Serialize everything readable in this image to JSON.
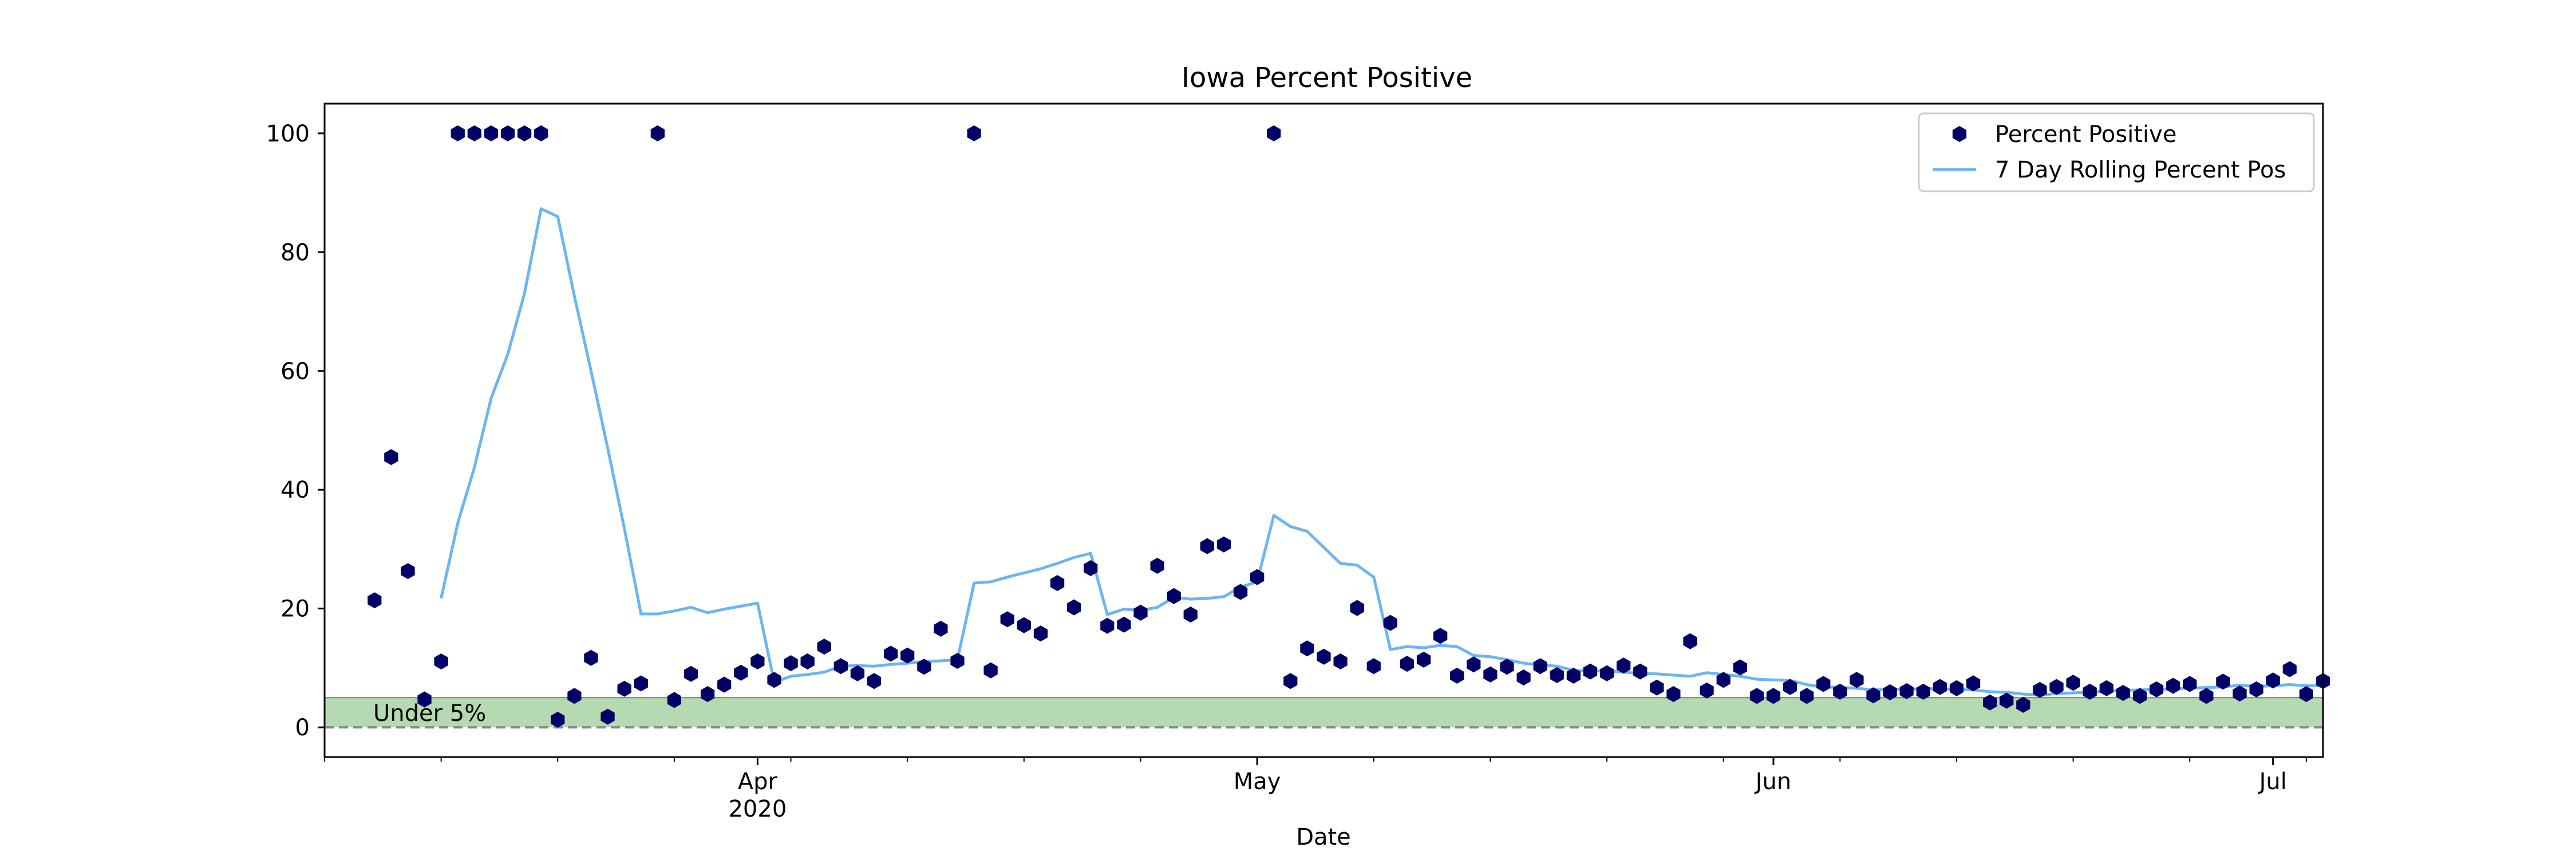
{
  "chart_data": {
    "type": "scatter",
    "title": "Iowa Percent Positive",
    "xlabel": "Date",
    "ylabel": "",
    "x_axis": {
      "type": "date",
      "range": [
        "2020-03-06",
        "2020-07-03"
      ],
      "major_ticks": [
        {
          "date": "2020-04-01",
          "label": "Apr",
          "sublabel": "2020"
        },
        {
          "date": "2020-05-01",
          "label": "May",
          "sublabel": ""
        },
        {
          "date": "2020-06-01",
          "label": "Jun",
          "sublabel": ""
        },
        {
          "date": "2020-07-01",
          "label": "Jul",
          "sublabel": ""
        }
      ],
      "minor_ticks": "weekly"
    },
    "y_axis": {
      "range": [
        -5,
        105
      ],
      "ticks": [
        0,
        20,
        40,
        60,
        80,
        100
      ]
    },
    "grid": false,
    "legend": {
      "position": "top-right",
      "entries": [
        {
          "label": "Percent Positive",
          "color": "#000066",
          "marker": "hexagon"
        },
        {
          "label": "7 Day Rolling Percent Pos",
          "color": "#6cb4f2",
          "marker": "line"
        }
      ]
    },
    "band": {
      "y0": 0,
      "y1": 5,
      "label": "Under 5%",
      "color": "#b5d9b0",
      "edge_color": "#5a9a5a"
    },
    "reference_line": {
      "y": 0,
      "style": "dashed",
      "color": "#888888"
    },
    "series": [
      {
        "name": "Percent Positive",
        "style": "markers",
        "color": "#000066",
        "points": [
          [
            "2020-03-09",
            21.4
          ],
          [
            "2020-03-10",
            45.5
          ],
          [
            "2020-03-11",
            26.3
          ],
          [
            "2020-03-12",
            4.7
          ],
          [
            "2020-03-13",
            11.1
          ],
          [
            "2020-03-14",
            100
          ],
          [
            "2020-03-15",
            100
          ],
          [
            "2020-03-16",
            100
          ],
          [
            "2020-03-17",
            100
          ],
          [
            "2020-03-18",
            100
          ],
          [
            "2020-03-19",
            100
          ],
          [
            "2020-03-20",
            1.3
          ],
          [
            "2020-03-21",
            5.3
          ],
          [
            "2020-03-22",
            11.7
          ],
          [
            "2020-03-23",
            1.8
          ],
          [
            "2020-03-24",
            6.5
          ],
          [
            "2020-03-25",
            7.4
          ],
          [
            "2020-03-26",
            100
          ],
          [
            "2020-03-27",
            4.6
          ],
          [
            "2020-03-28",
            9.0
          ],
          [
            "2020-03-29",
            5.6
          ],
          [
            "2020-03-30",
            7.2
          ],
          [
            "2020-03-31",
            9.2
          ],
          [
            "2020-04-01",
            11.1
          ],
          [
            "2020-04-02",
            8.0
          ],
          [
            "2020-04-03",
            10.8
          ],
          [
            "2020-04-04",
            11.1
          ],
          [
            "2020-04-05",
            13.6
          ],
          [
            "2020-04-06",
            10.3
          ],
          [
            "2020-04-07",
            9.1
          ],
          [
            "2020-04-08",
            7.8
          ],
          [
            "2020-04-09",
            12.4
          ],
          [
            "2020-04-10",
            12.1
          ],
          [
            "2020-04-11",
            10.2
          ],
          [
            "2020-04-12",
            16.6
          ],
          [
            "2020-04-13",
            11.2
          ],
          [
            "2020-04-14",
            100
          ],
          [
            "2020-04-15",
            9.6
          ],
          [
            "2020-04-16",
            18.2
          ],
          [
            "2020-04-17",
            17.2
          ],
          [
            "2020-04-18",
            15.8
          ],
          [
            "2020-04-19",
            24.3
          ],
          [
            "2020-04-20",
            20.2
          ],
          [
            "2020-04-21",
            26.8
          ],
          [
            "2020-04-22",
            17.1
          ],
          [
            "2020-04-23",
            17.3
          ],
          [
            "2020-04-24",
            19.3
          ],
          [
            "2020-04-25",
            27.2
          ],
          [
            "2020-04-26",
            22.1
          ],
          [
            "2020-04-27",
            19.0
          ],
          [
            "2020-04-28",
            30.5
          ],
          [
            "2020-04-29",
            30.8
          ],
          [
            "2020-04-30",
            22.8
          ],
          [
            "2020-05-01",
            25.3
          ],
          [
            "2020-05-02",
            100
          ],
          [
            "2020-05-03",
            7.8
          ],
          [
            "2020-05-04",
            13.3
          ],
          [
            "2020-05-05",
            11.9
          ],
          [
            "2020-05-06",
            11.1
          ],
          [
            "2020-05-07",
            20.1
          ],
          [
            "2020-05-08",
            10.3
          ],
          [
            "2020-05-09",
            17.6
          ],
          [
            "2020-05-10",
            10.7
          ],
          [
            "2020-05-11",
            11.4
          ],
          [
            "2020-05-12",
            15.4
          ],
          [
            "2020-05-13",
            8.7
          ],
          [
            "2020-05-14",
            10.6
          ],
          [
            "2020-05-15",
            8.9
          ],
          [
            "2020-05-16",
            10.2
          ],
          [
            "2020-05-17",
            8.4
          ],
          [
            "2020-05-18",
            10.3
          ],
          [
            "2020-05-19",
            8.8
          ],
          [
            "2020-05-20",
            8.7
          ],
          [
            "2020-05-21",
            9.4
          ],
          [
            "2020-05-22",
            9.1
          ],
          [
            "2020-05-23",
            10.4
          ],
          [
            "2020-05-24",
            9.4
          ],
          [
            "2020-05-25",
            6.7
          ],
          [
            "2020-05-26",
            5.6
          ],
          [
            "2020-05-27",
            14.5
          ],
          [
            "2020-05-28",
            6.2
          ],
          [
            "2020-05-29",
            8.0
          ],
          [
            "2020-05-30",
            10.1
          ],
          [
            "2020-05-31",
            5.3
          ],
          [
            "2020-06-01",
            5.3
          ],
          [
            "2020-06-02",
            6.8
          ],
          [
            "2020-06-03",
            5.3
          ],
          [
            "2020-06-04",
            7.3
          ],
          [
            "2020-06-05",
            6.0
          ],
          [
            "2020-06-06",
            8.0
          ],
          [
            "2020-06-07",
            5.4
          ],
          [
            "2020-06-08",
            5.9
          ],
          [
            "2020-06-09",
            6.1
          ],
          [
            "2020-06-10",
            6.0
          ],
          [
            "2020-06-11",
            6.8
          ],
          [
            "2020-06-12",
            6.6
          ],
          [
            "2020-06-13",
            7.4
          ],
          [
            "2020-06-14",
            4.2
          ],
          [
            "2020-06-15",
            4.5
          ],
          [
            "2020-06-16",
            3.8
          ],
          [
            "2020-06-17",
            6.3
          ],
          [
            "2020-06-18",
            6.8
          ],
          [
            "2020-06-19",
            7.5
          ],
          [
            "2020-06-20",
            6.0
          ],
          [
            "2020-06-21",
            6.6
          ],
          [
            "2020-06-22",
            5.8
          ],
          [
            "2020-06-23",
            5.3
          ],
          [
            "2020-06-24",
            6.4
          ],
          [
            "2020-06-25",
            7.0
          ],
          [
            "2020-06-26",
            7.3
          ],
          [
            "2020-06-27",
            5.3
          ],
          [
            "2020-06-28",
            7.7
          ],
          [
            "2020-06-29",
            5.7
          ],
          [
            "2020-06-30",
            6.4
          ],
          [
            "2020-07-01",
            7.9
          ],
          [
            "2020-07-02",
            9.8
          ],
          [
            "2020-07-03",
            5.6
          ],
          [
            "2020-07-04",
            7.8
          ]
        ]
      },
      {
        "name": "7 Day Rolling Percent Pos",
        "style": "line",
        "color": "#6cb4f2",
        "points": [
          [
            "2020-03-13",
            21.7
          ],
          [
            "2020-03-14",
            34.4
          ],
          [
            "2020-03-15",
            43.8
          ],
          [
            "2020-03-16",
            55.4
          ],
          [
            "2020-03-17",
            62.8
          ],
          [
            "2020-03-18",
            73.0
          ],
          [
            "2020-03-19",
            87.3
          ],
          [
            "2020-03-20",
            86.0
          ],
          [
            "2020-03-21",
            72.6
          ],
          [
            "2020-03-22",
            60.0
          ],
          [
            "2020-03-23",
            47.0
          ],
          [
            "2020-03-24",
            33.5
          ],
          [
            "2020-03-25",
            19.1
          ],
          [
            "2020-03-26",
            19.1
          ],
          [
            "2020-03-27",
            19.6
          ],
          [
            "2020-03-28",
            20.2
          ],
          [
            "2020-03-29",
            19.3
          ],
          [
            "2020-03-30",
            19.9
          ],
          [
            "2020-03-31",
            20.4
          ],
          [
            "2020-04-01",
            20.9
          ],
          [
            "2020-04-02",
            7.6
          ],
          [
            "2020-04-03",
            8.6
          ],
          [
            "2020-04-04",
            8.9
          ],
          [
            "2020-04-05",
            9.3
          ],
          [
            "2020-04-06",
            10.3
          ],
          [
            "2020-04-07",
            10.4
          ],
          [
            "2020-04-08",
            10.3
          ],
          [
            "2020-04-09",
            10.6
          ],
          [
            "2020-04-10",
            10.8
          ],
          [
            "2020-04-11",
            11.1
          ],
          [
            "2020-04-12",
            11.2
          ],
          [
            "2020-04-13",
            11.4
          ],
          [
            "2020-04-14",
            24.3
          ],
          [
            "2020-04-15",
            24.5
          ],
          [
            "2020-04-16",
            25.3
          ],
          [
            "2020-04-17",
            26.0
          ],
          [
            "2020-04-18",
            26.7
          ],
          [
            "2020-04-19",
            27.6
          ],
          [
            "2020-04-20",
            28.6
          ],
          [
            "2020-04-21",
            29.3
          ],
          [
            "2020-04-22",
            19.0
          ],
          [
            "2020-04-23",
            19.9
          ],
          [
            "2020-04-24",
            19.7
          ],
          [
            "2020-04-25",
            20.2
          ],
          [
            "2020-04-26",
            21.9
          ],
          [
            "2020-04-27",
            21.6
          ],
          [
            "2020-04-28",
            21.7
          ],
          [
            "2020-04-29",
            22.0
          ],
          [
            "2020-04-30",
            23.6
          ],
          [
            "2020-05-01",
            24.5
          ],
          [
            "2020-05-02",
            35.7
          ],
          [
            "2020-05-03",
            33.8
          ],
          [
            "2020-05-04",
            33.0
          ],
          [
            "2020-05-05",
            30.3
          ],
          [
            "2020-05-06",
            27.6
          ],
          [
            "2020-05-07",
            27.3
          ],
          [
            "2020-05-08",
            25.3
          ],
          [
            "2020-05-09",
            13.1
          ],
          [
            "2020-05-10",
            13.6
          ],
          [
            "2020-05-11",
            13.4
          ],
          [
            "2020-05-12",
            13.8
          ],
          [
            "2020-05-13",
            13.6
          ],
          [
            "2020-05-14",
            12.1
          ],
          [
            "2020-05-15",
            11.9
          ],
          [
            "2020-05-16",
            11.4
          ],
          [
            "2020-05-17",
            10.8
          ],
          [
            "2020-05-18",
            10.5
          ],
          [
            "2020-05-19",
            10.3
          ],
          [
            "2020-05-20",
            9.6
          ],
          [
            "2020-05-21",
            9.5
          ],
          [
            "2020-05-22",
            9.5
          ],
          [
            "2020-05-23",
            9.3
          ],
          [
            "2020-05-24",
            9.1
          ],
          [
            "2020-05-25",
            9.0
          ],
          [
            "2020-05-26",
            8.8
          ],
          [
            "2020-05-27",
            8.6
          ],
          [
            "2020-05-28",
            9.2
          ],
          [
            "2020-05-29",
            8.9
          ],
          [
            "2020-05-30",
            8.6
          ],
          [
            "2020-05-31",
            8.1
          ],
          [
            "2020-06-01",
            8.0
          ],
          [
            "2020-06-02",
            7.9
          ],
          [
            "2020-06-03",
            7.2
          ],
          [
            "2020-06-04",
            6.8
          ],
          [
            "2020-06-05",
            6.7
          ],
          [
            "2020-06-06",
            6.6
          ],
          [
            "2020-06-07",
            6.3
          ],
          [
            "2020-06-08",
            6.4
          ],
          [
            "2020-06-09",
            6.4
          ],
          [
            "2020-06-10",
            6.5
          ],
          [
            "2020-06-11",
            6.5
          ],
          [
            "2020-06-12",
            6.4
          ],
          [
            "2020-06-13",
            6.3
          ],
          [
            "2020-06-14",
            6.0
          ],
          [
            "2020-06-15",
            5.9
          ],
          [
            "2020-06-16",
            5.6
          ],
          [
            "2020-06-17",
            5.4
          ],
          [
            "2020-06-18",
            5.7
          ],
          [
            "2020-06-19",
            5.8
          ],
          [
            "2020-06-20",
            5.9
          ],
          [
            "2020-06-21",
            6.1
          ],
          [
            "2020-06-22",
            6.2
          ],
          [
            "2020-06-23",
            6.3
          ],
          [
            "2020-06-24",
            6.4
          ],
          [
            "2020-06-25",
            6.5
          ],
          [
            "2020-06-26",
            6.6
          ],
          [
            "2020-06-27",
            6.7
          ],
          [
            "2020-06-28",
            6.8
          ],
          [
            "2020-06-29",
            7.1
          ],
          [
            "2020-06-30",
            6.9
          ],
          [
            "2020-07-01",
            7.0
          ],
          [
            "2020-07-02",
            7.2
          ],
          [
            "2020-07-03",
            7.0
          ],
          [
            "2020-07-04",
            7.0
          ]
        ]
      }
    ]
  }
}
